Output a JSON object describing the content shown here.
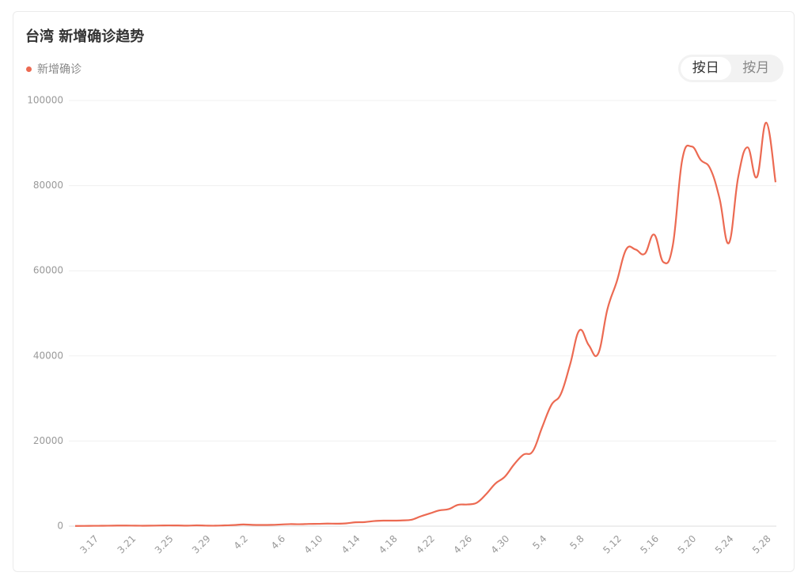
{
  "chart_data": {
    "type": "line",
    "title": "台湾 新增确诊趋势",
    "toggle": [
      "按日",
      "按月"
    ],
    "categories": [
      null,
      null,
      "3.17",
      null,
      null,
      null,
      "3.21",
      null,
      null,
      null,
      "3.25",
      null,
      null,
      null,
      "3.29",
      null,
      null,
      null,
      "4.2",
      null,
      null,
      null,
      "4.6",
      null,
      null,
      null,
      "4.10",
      null,
      null,
      null,
      "4.14",
      null,
      null,
      null,
      "4.18",
      null,
      null,
      null,
      "4.22",
      null,
      null,
      null,
      "4.26",
      null,
      null,
      null,
      "4.30",
      null,
      null,
      null,
      "5.4",
      null,
      null,
      null,
      "5.8",
      null,
      null,
      null,
      "5.12",
      null,
      null,
      null,
      "5.16",
      null,
      null,
      null,
      "5.20",
      null,
      null,
      null,
      "5.24",
      null,
      null,
      null,
      "5.28",
      null
    ],
    "series": [
      {
        "name": "新增确诊",
        "color": "#ec6a52",
        "values": [
          50,
          60,
          80,
          90,
          120,
          140,
          130,
          100,
          110,
          150,
          170,
          160,
          120,
          190,
          130,
          110,
          180,
          250,
          400,
          300,
          280,
          300,
          380,
          480,
          450,
          520,
          550,
          600,
          580,
          650,
          900,
          950,
          1200,
          1300,
          1300,
          1350,
          1500,
          2300,
          3000,
          3700,
          4000,
          5000,
          5100,
          5500,
          7500,
          10000,
          11600,
          14500,
          16800,
          17600,
          23200,
          28500,
          31000,
          38000,
          46000,
          42500,
          40500,
          51000,
          57500,
          65000,
          65000,
          64000,
          68500,
          62000,
          66000,
          86000,
          89200,
          86000,
          84000,
          77000,
          66500,
          82000,
          89000,
          82000,
          94800,
          80800
        ]
      }
    ],
    "ylim": [
      0,
      100000
    ],
    "yticks": [
      0,
      20000,
      40000,
      60000,
      80000,
      100000
    ],
    "grid": true
  }
}
